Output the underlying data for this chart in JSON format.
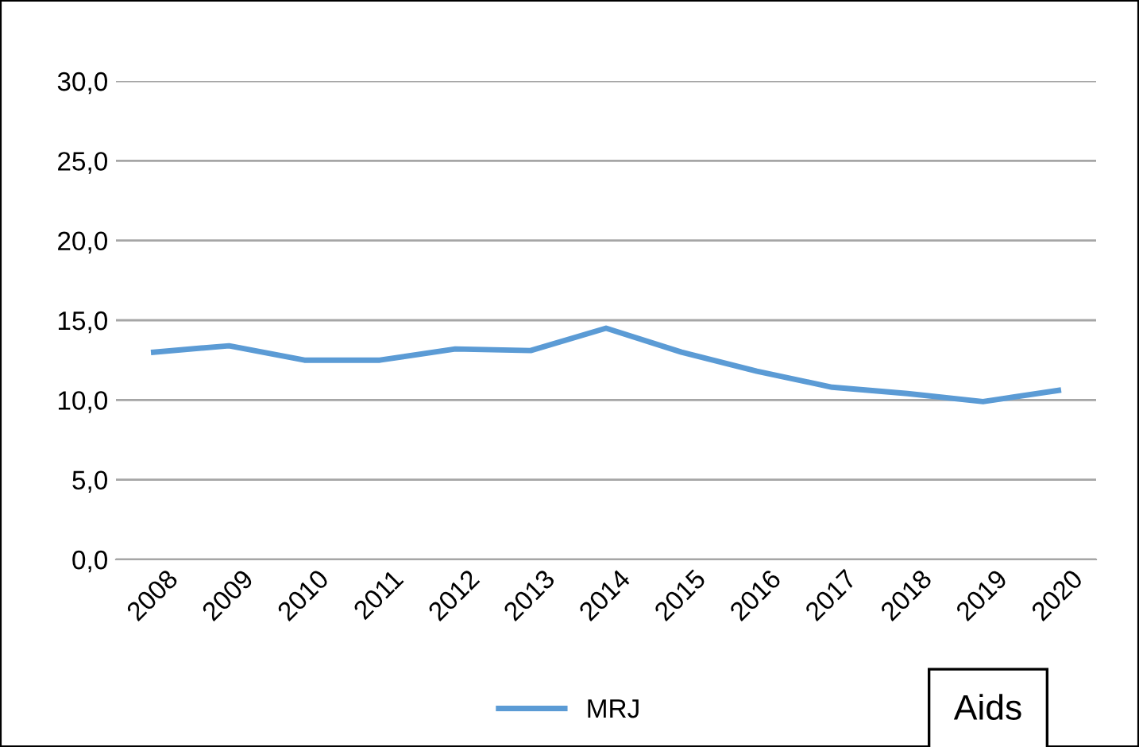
{
  "chart_data": {
    "type": "line",
    "categories": [
      "2008",
      "2009",
      "2010",
      "2011",
      "2012",
      "2013",
      "2014",
      "2015",
      "2016",
      "2017",
      "2018",
      "2019",
      "2020"
    ],
    "series": [
      {
        "name": "MRJ",
        "color": "#5b9bd5",
        "values": [
          13.0,
          13.4,
          12.5,
          12.5,
          13.2,
          13.1,
          14.5,
          13.0,
          11.8,
          10.8,
          10.4,
          9.9,
          10.6
        ]
      }
    ],
    "ylim": [
      0,
      30
    ],
    "yticks": [
      {
        "value": 0,
        "label": "0,0"
      },
      {
        "value": 5,
        "label": "5,0"
      },
      {
        "value": 10,
        "label": "10,0"
      },
      {
        "value": 15,
        "label": "15,0"
      },
      {
        "value": 20,
        "label": "20,0"
      },
      {
        "value": 25,
        "label": "25,0"
      },
      {
        "value": 30,
        "label": "30,0"
      }
    ],
    "grid": "y",
    "legend": "bottom",
    "marker": "none",
    "line_style": "solid",
    "annotations": [
      "Aids"
    ]
  }
}
